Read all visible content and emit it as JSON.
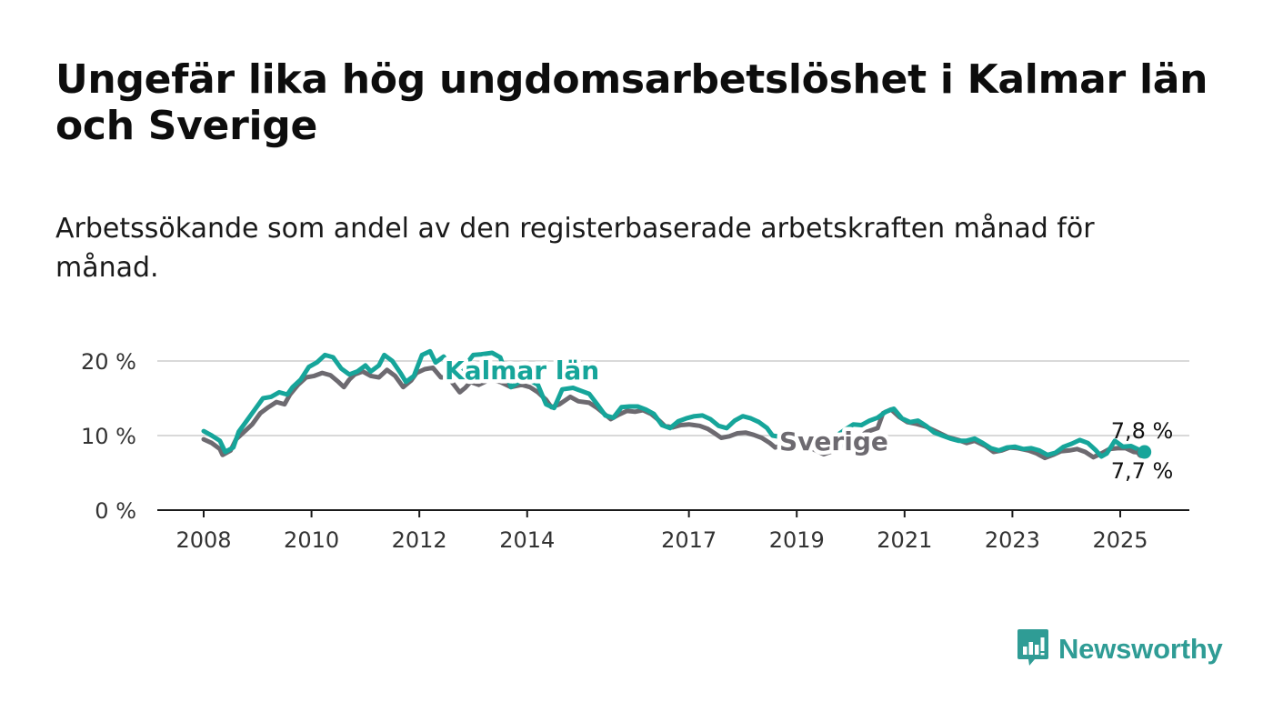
{
  "title": "Ungefär lika hög ungdomsarbetslöshet i Kalmar län och Sverige",
  "subtitle": "Arbetssökande som andel av den registerbaserade arbetskraften månad för månad.",
  "brand": {
    "name": "Newsworthy",
    "icon": "bar-chart-speech-bubble-icon",
    "color": "#2f9c95"
  },
  "chart_data": {
    "type": "line",
    "x_range": [
      2008,
      2025.6
    ],
    "ylim": [
      0,
      20
    ],
    "yticks": [
      0,
      10,
      20
    ],
    "ytick_labels": [
      "0 %",
      "10 %",
      "20 %"
    ],
    "xticks": [
      2008,
      2010,
      2012,
      2014,
      2017,
      2019,
      2021,
      2023,
      2025
    ],
    "xtick_labels": [
      "2008",
      "2010",
      "2012",
      "2014",
      "2017",
      "2019",
      "2021",
      "2023",
      "2025"
    ],
    "grid": true,
    "series": [
      {
        "name": "Sverige",
        "color": "#6d6a70",
        "end_label": "7,7 %",
        "points": [
          [
            2008.0,
            9.5
          ],
          [
            2008.15,
            9.0
          ],
          [
            2008.3,
            8.2
          ],
          [
            2008.35,
            7.4
          ],
          [
            2008.5,
            8.0
          ],
          [
            2008.6,
            9.5
          ],
          [
            2008.75,
            10.5
          ],
          [
            2008.9,
            11.5
          ],
          [
            2009.05,
            13.0
          ],
          [
            2009.2,
            13.8
          ],
          [
            2009.35,
            14.5
          ],
          [
            2009.5,
            14.2
          ],
          [
            2009.6,
            15.5
          ],
          [
            2009.75,
            16.8
          ],
          [
            2009.9,
            17.8
          ],
          [
            2010.05,
            18.0
          ],
          [
            2010.2,
            18.4
          ],
          [
            2010.35,
            18.1
          ],
          [
            2010.5,
            17.2
          ],
          [
            2010.6,
            16.5
          ],
          [
            2010.7,
            17.5
          ],
          [
            2010.8,
            18.2
          ],
          [
            2010.95,
            18.6
          ],
          [
            2011.1,
            18.0
          ],
          [
            2011.25,
            17.8
          ],
          [
            2011.4,
            18.8
          ],
          [
            2011.55,
            18.0
          ],
          [
            2011.7,
            16.5
          ],
          [
            2011.85,
            17.4
          ],
          [
            2011.95,
            18.4
          ],
          [
            2012.1,
            18.9
          ],
          [
            2012.25,
            19.1
          ],
          [
            2012.4,
            17.8
          ],
          [
            2012.5,
            17.8
          ],
          [
            2012.6,
            17.2
          ],
          [
            2012.75,
            15.8
          ],
          [
            2012.85,
            16.4
          ],
          [
            2012.95,
            17.2
          ],
          [
            2013.1,
            16.8
          ],
          [
            2013.3,
            17.5
          ],
          [
            2013.5,
            17.2
          ],
          [
            2013.7,
            16.5
          ],
          [
            2013.9,
            16.8
          ],
          [
            2014.05,
            16.5
          ],
          [
            2014.2,
            15.8
          ],
          [
            2014.35,
            14.8
          ],
          [
            2014.45,
            13.8
          ],
          [
            2014.6,
            14.2
          ],
          [
            2014.8,
            15.2
          ],
          [
            2014.95,
            14.6
          ],
          [
            2015.15,
            14.4
          ],
          [
            2015.3,
            13.7
          ],
          [
            2015.45,
            12.8
          ],
          [
            2015.55,
            12.2
          ],
          [
            2015.7,
            12.8
          ],
          [
            2015.85,
            13.3
          ],
          [
            2016.0,
            13.2
          ],
          [
            2016.15,
            13.4
          ],
          [
            2016.3,
            12.9
          ],
          [
            2016.45,
            12.0
          ],
          [
            2016.55,
            11.3
          ],
          [
            2016.7,
            11.1
          ],
          [
            2016.85,
            11.4
          ],
          [
            2017.0,
            11.5
          ],
          [
            2017.2,
            11.3
          ],
          [
            2017.35,
            10.9
          ],
          [
            2017.5,
            10.2
          ],
          [
            2017.6,
            9.7
          ],
          [
            2017.75,
            9.9
          ],
          [
            2017.9,
            10.3
          ],
          [
            2018.05,
            10.4
          ],
          [
            2018.2,
            10.1
          ],
          [
            2018.35,
            9.7
          ],
          [
            2018.5,
            9.0
          ],
          [
            2018.6,
            8.4
          ],
          [
            2018.75,
            8.7
          ],
          [
            2018.9,
            9.0
          ],
          [
            2019.1,
            8.7
          ],
          [
            2019.3,
            8.2
          ],
          [
            2019.5,
            7.5
          ],
          [
            2019.7,
            8.0
          ],
          [
            2019.9,
            9.0
          ],
          [
            2020.1,
            9.5
          ],
          [
            2020.3,
            10.5
          ],
          [
            2020.5,
            11.0
          ],
          [
            2020.6,
            13.0
          ],
          [
            2020.75,
            13.5
          ],
          [
            2020.9,
            12.5
          ],
          [
            2021.05,
            11.8
          ],
          [
            2021.2,
            11.6
          ],
          [
            2021.4,
            11.2
          ],
          [
            2021.6,
            10.5
          ],
          [
            2021.8,
            9.8
          ],
          [
            2022.0,
            9.4
          ],
          [
            2022.15,
            9.0
          ],
          [
            2022.3,
            9.3
          ],
          [
            2022.5,
            8.6
          ],
          [
            2022.65,
            7.8
          ],
          [
            2022.8,
            8.0
          ],
          [
            2022.95,
            8.4
          ],
          [
            2023.1,
            8.3
          ],
          [
            2023.3,
            8.0
          ],
          [
            2023.45,
            7.6
          ],
          [
            2023.6,
            7.0
          ],
          [
            2023.75,
            7.4
          ],
          [
            2023.9,
            7.9
          ],
          [
            2024.05,
            8.0
          ],
          [
            2024.2,
            8.2
          ],
          [
            2024.35,
            7.8
          ],
          [
            2024.5,
            7.1
          ],
          [
            2024.65,
            7.6
          ],
          [
            2024.8,
            8.2
          ],
          [
            2024.95,
            8.3
          ],
          [
            2025.1,
            8.3
          ],
          [
            2025.25,
            7.8
          ],
          [
            2025.4,
            7.7
          ]
        ]
      },
      {
        "name": "Kalmar län",
        "color": "#16a59a",
        "end_label": "7,8 %",
        "points": [
          [
            2008.0,
            10.6
          ],
          [
            2008.15,
            10.0
          ],
          [
            2008.3,
            9.3
          ],
          [
            2008.4,
            7.8
          ],
          [
            2008.55,
            8.4
          ],
          [
            2008.65,
            10.5
          ],
          [
            2008.8,
            12.0
          ],
          [
            2008.95,
            13.5
          ],
          [
            2009.1,
            15.0
          ],
          [
            2009.25,
            15.2
          ],
          [
            2009.4,
            15.8
          ],
          [
            2009.55,
            15.5
          ],
          [
            2009.65,
            16.5
          ],
          [
            2009.8,
            17.5
          ],
          [
            2009.95,
            19.2
          ],
          [
            2010.1,
            19.8
          ],
          [
            2010.25,
            20.8
          ],
          [
            2010.4,
            20.5
          ],
          [
            2010.55,
            19.0
          ],
          [
            2010.7,
            18.2
          ],
          [
            2010.85,
            18.6
          ],
          [
            2011.0,
            19.4
          ],
          [
            2011.1,
            18.6
          ],
          [
            2011.25,
            19.4
          ],
          [
            2011.35,
            20.8
          ],
          [
            2011.5,
            20.0
          ],
          [
            2011.65,
            18.4
          ],
          [
            2011.75,
            17.2
          ],
          [
            2011.9,
            18.0
          ],
          [
            2012.05,
            20.8
          ],
          [
            2012.2,
            21.3
          ],
          [
            2012.3,
            19.8
          ],
          [
            2012.45,
            20.6
          ],
          [
            2012.55,
            19.5
          ],
          [
            2012.65,
            18.5
          ],
          [
            2012.75,
            18.0
          ],
          [
            2012.85,
            19.4
          ],
          [
            2013.0,
            20.8
          ],
          [
            2013.15,
            20.9
          ],
          [
            2013.35,
            21.1
          ],
          [
            2013.5,
            20.5
          ],
          [
            2013.7,
            16.5
          ],
          [
            2013.9,
            17.4
          ],
          [
            2014.05,
            17.4
          ],
          [
            2014.2,
            16.8
          ],
          [
            2014.35,
            14.2
          ],
          [
            2014.5,
            13.7
          ],
          [
            2014.65,
            16.2
          ],
          [
            2014.85,
            16.4
          ],
          [
            2015.0,
            16.0
          ],
          [
            2015.15,
            15.6
          ],
          [
            2015.3,
            14.2
          ],
          [
            2015.45,
            12.7
          ],
          [
            2015.6,
            12.4
          ],
          [
            2015.75,
            13.8
          ],
          [
            2015.9,
            13.9
          ],
          [
            2016.05,
            13.9
          ],
          [
            2016.2,
            13.5
          ],
          [
            2016.35,
            12.9
          ],
          [
            2016.5,
            11.4
          ],
          [
            2016.65,
            11.0
          ],
          [
            2016.8,
            11.9
          ],
          [
            2016.95,
            12.3
          ],
          [
            2017.1,
            12.6
          ],
          [
            2017.25,
            12.7
          ],
          [
            2017.4,
            12.2
          ],
          [
            2017.55,
            11.3
          ],
          [
            2017.7,
            11.0
          ],
          [
            2017.85,
            12.0
          ],
          [
            2018.0,
            12.6
          ],
          [
            2018.15,
            12.3
          ],
          [
            2018.3,
            11.8
          ],
          [
            2018.45,
            11.0
          ],
          [
            2018.55,
            10.0
          ],
          [
            2018.7,
            9.8
          ],
          [
            2018.85,
            10.3
          ],
          [
            2019.1,
            9.6
          ],
          [
            2019.3,
            8.8
          ],
          [
            2019.5,
            8.6
          ],
          [
            2019.7,
            9.8
          ],
          [
            2019.9,
            10.8
          ],
          [
            2020.05,
            11.5
          ],
          [
            2020.2,
            11.4
          ],
          [
            2020.35,
            12.0
          ],
          [
            2020.5,
            12.4
          ],
          [
            2020.65,
            13.2
          ],
          [
            2020.8,
            13.6
          ],
          [
            2020.95,
            12.3
          ],
          [
            2021.1,
            11.8
          ],
          [
            2021.25,
            12.0
          ],
          [
            2021.4,
            11.3
          ],
          [
            2021.55,
            10.4
          ],
          [
            2021.7,
            10.0
          ],
          [
            2021.85,
            9.6
          ],
          [
            2022.0,
            9.3
          ],
          [
            2022.15,
            9.3
          ],
          [
            2022.3,
            9.6
          ],
          [
            2022.45,
            9.0
          ],
          [
            2022.6,
            8.3
          ],
          [
            2022.75,
            8.0
          ],
          [
            2022.9,
            8.4
          ],
          [
            2023.05,
            8.5
          ],
          [
            2023.2,
            8.2
          ],
          [
            2023.35,
            8.3
          ],
          [
            2023.5,
            8.0
          ],
          [
            2023.65,
            7.4
          ],
          [
            2023.8,
            7.7
          ],
          [
            2023.95,
            8.5
          ],
          [
            2024.1,
            8.9
          ],
          [
            2024.25,
            9.4
          ],
          [
            2024.4,
            9.0
          ],
          [
            2024.55,
            8.0
          ],
          [
            2024.65,
            7.2
          ],
          [
            2024.75,
            7.6
          ],
          [
            2024.9,
            9.3
          ],
          [
            2025.05,
            8.5
          ],
          [
            2025.2,
            8.6
          ],
          [
            2025.35,
            8.1
          ],
          [
            2025.45,
            7.8
          ]
        ]
      }
    ]
  }
}
